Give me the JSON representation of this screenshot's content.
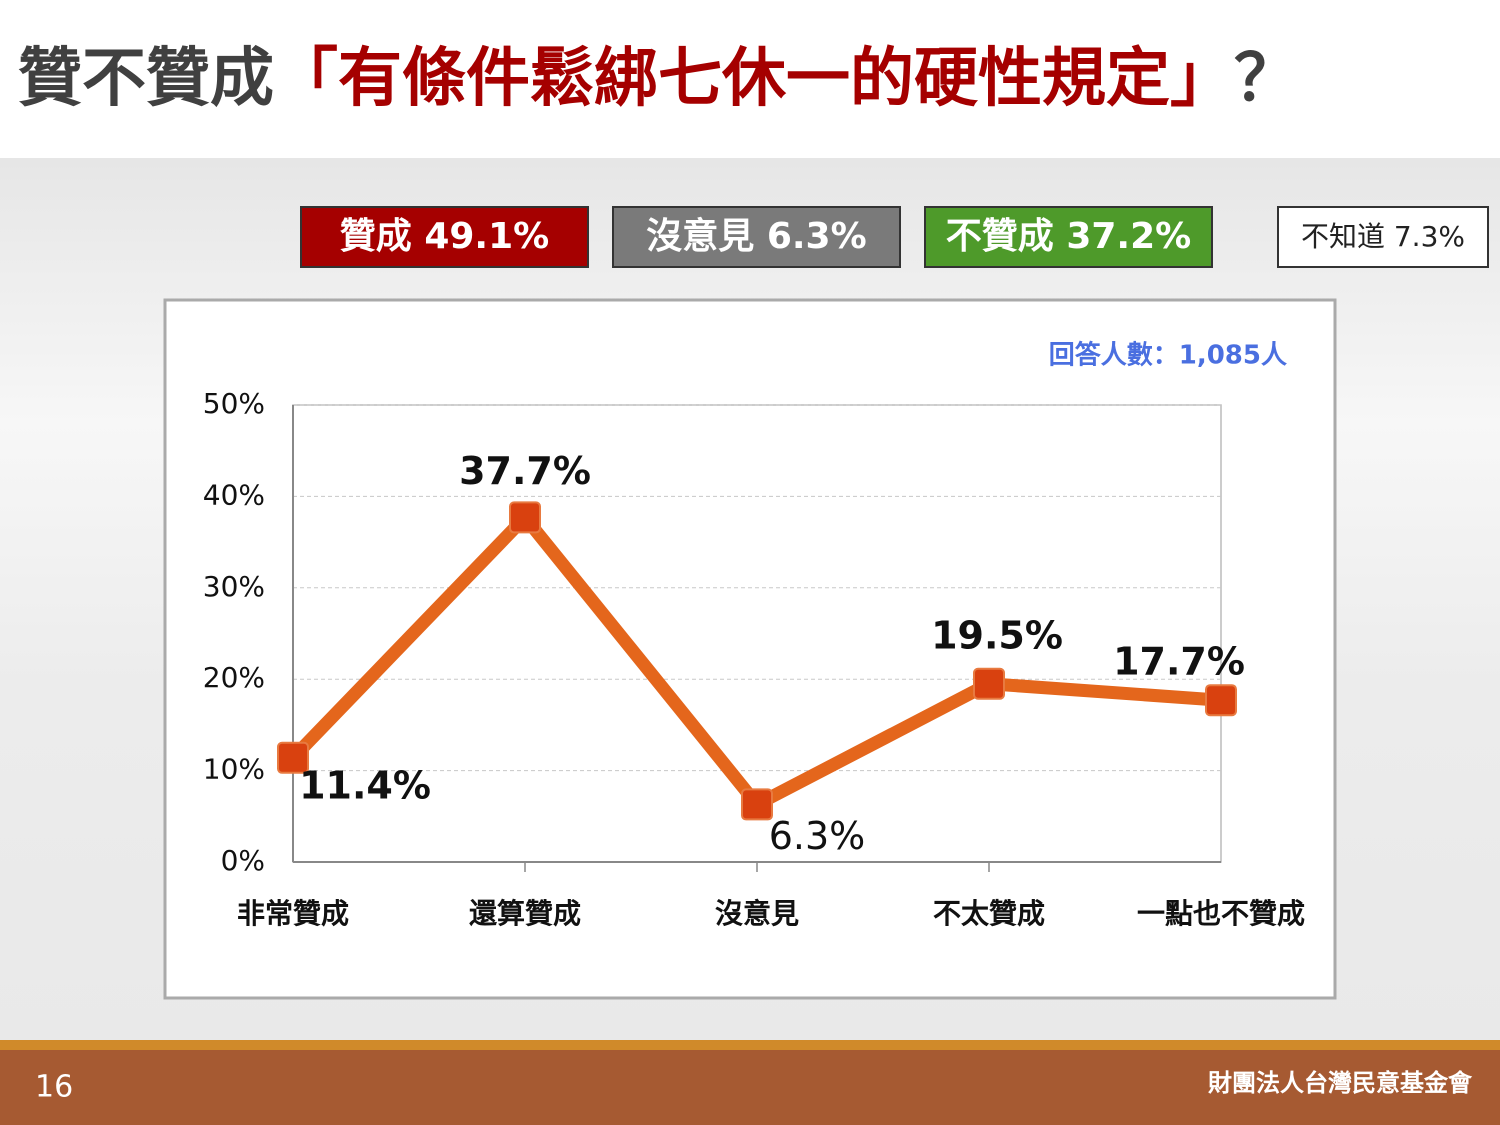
{
  "header": {
    "title": [
      "贊不贊成",
      "「有條件鬆綁七休一的硬性規定」",
      "？"
    ]
  },
  "summary": [
    {
      "label": "贊成 49.1%",
      "color": "#a50000"
    },
    {
      "label": "沒意見 6.3%",
      "color": "#7a7a7a"
    },
    {
      "label": "不贊成 37.2%",
      "color": "#4e9a2a"
    },
    {
      "label": "不知道 7.3%",
      "color": "#ffffff"
    }
  ],
  "chart_data": {
    "type": "line",
    "note": "回答人數：1,085人",
    "categories": [
      "非常贊成",
      "還算贊成",
      "沒意見",
      "不太贊成",
      "一點也不贊成"
    ],
    "values": [
      11.4,
      37.7,
      6.3,
      19.5,
      17.7
    ],
    "value_labels": [
      "11.4%",
      "37.7%",
      "6.3%",
      "19.5%",
      "17.7%"
    ],
    "color": "#e4661c",
    "marker_color": "#d9410f",
    "ylim": [
      0,
      50
    ],
    "yticks": [
      {
        "value": 0,
        "label": "0%"
      },
      {
        "value": 10,
        "label": "10%"
      },
      {
        "value": 20,
        "label": "20%"
      },
      {
        "value": 30,
        "label": "30%"
      },
      {
        "value": 40,
        "label": "40%"
      },
      {
        "value": 50,
        "label": "50%"
      }
    ],
    "grid": true
  },
  "footer": {
    "page": "16",
    "org": "財團法人台灣民意基金會"
  }
}
